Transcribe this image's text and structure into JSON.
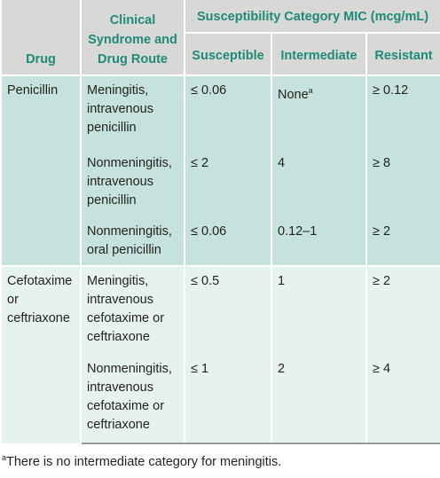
{
  "table": {
    "header": {
      "drug": "Drug",
      "syndrome": "Clinical Syndrome and Drug Route",
      "group": "Susceptibility Category MIC (mcg/mL)",
      "susceptible": "Susceptible",
      "intermediate": "Intermediate",
      "resistant": "Resistant"
    },
    "groups": [
      {
        "drug": "Penicillin",
        "rows": [
          [
            "Meningitis, intravenous penicillin",
            "≤ 0.06",
            "None",
            "≥ 0.12"
          ],
          [
            "Nonmeningitis, intravenous penicillin",
            "≤ 2",
            "4",
            "≥ 8"
          ],
          [
            "Nonmeningitis, oral penicillin",
            "≤ 0.06",
            "0.12–1",
            "≥ 2"
          ]
        ]
      },
      {
        "drug": "Cefotaxime or ceftriaxone",
        "rows": [
          [
            "Meningitis, intravenous cefotaxime or ceftriaxone",
            "≤ 0.5",
            "1",
            "≥ 2"
          ],
          [
            "Nonmeningitis, intravenous cefotaxime or ceftriaxone",
            "≤ 1",
            "2",
            "≥ 4"
          ]
        ]
      }
    ]
  },
  "footnote": {
    "marker": "a",
    "text": "There is no intermediate category for meningitis."
  }
}
